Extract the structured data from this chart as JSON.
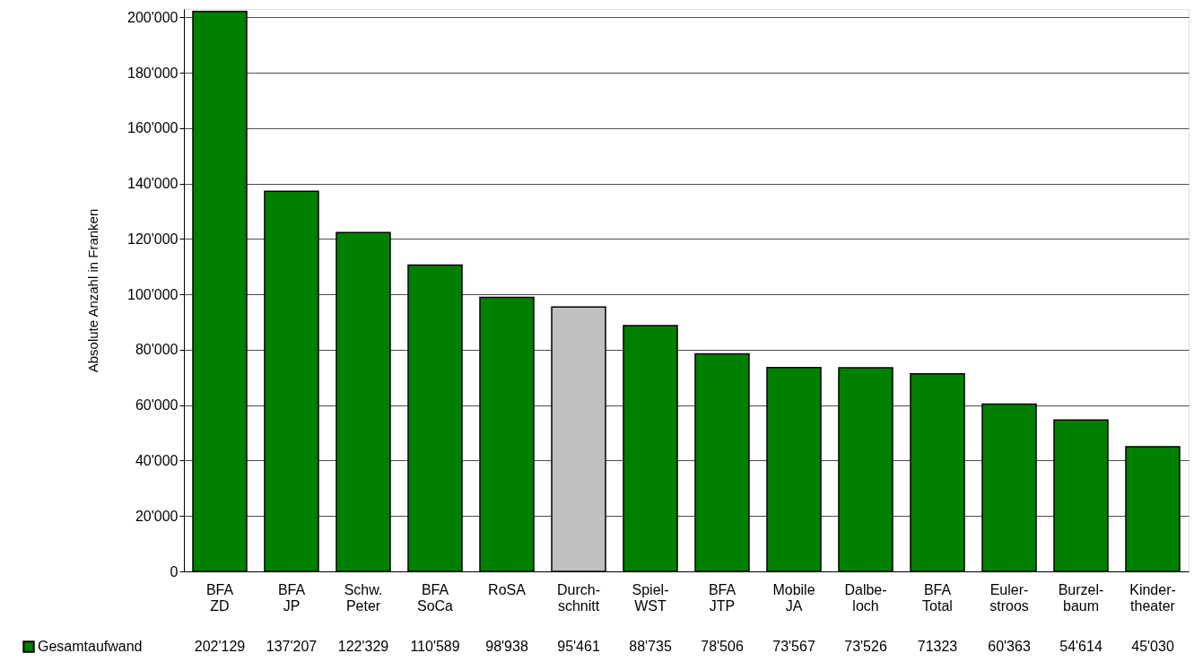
{
  "chart_data": {
    "type": "bar",
    "ylabel": "Absolute Anzahl in Franken",
    "categories": [
      "BFA\nZD",
      "BFA\nJP",
      "Schw.\nPeter",
      "BFA\nSoCa",
      "RoSA",
      "Durch-\nschnitt",
      "Spiel-\nWST",
      "BFA\nJTP",
      "Mobile\nJA",
      "Dalbe-\nloch",
      "BFA\nTotal",
      "Euler-\nstroos",
      "Burzel-\nbaum",
      "Kinder-\ntheater"
    ],
    "series": [
      {
        "name": "Gesamtaufwand",
        "color": "#008000",
        "colors": [
          "#008000",
          "#008000",
          "#008000",
          "#008000",
          "#008000",
          "#c0c0c0",
          "#008000",
          "#008000",
          "#008000",
          "#008000",
          "#008000",
          "#008000",
          "#008000",
          "#008000"
        ],
        "values": [
          202129,
          137207,
          122329,
          110589,
          98938,
          95461,
          88735,
          78506,
          73567,
          73526,
          71323,
          60363,
          54614,
          45030
        ],
        "value_labels": [
          "202'129",
          "137'207",
          "122'329",
          "110'589",
          "98'938",
          "95'461",
          "88'735",
          "78'506",
          "73'567",
          "73'526",
          "71323",
          "60'363",
          "54'614",
          "45'030"
        ]
      }
    ],
    "ylim": [
      0,
      203000
    ],
    "yticks": [
      0,
      {
        "value": 20000,
        "label": "20'000"
      },
      {
        "value": 40000,
        "label": "40'000"
      },
      {
        "value": 60000,
        "label": "60'000"
      },
      {
        "value": 80000,
        "label": "80'000"
      },
      {
        "value": 100000,
        "label": "100'000"
      },
      {
        "value": 120000,
        "label": "120'000"
      },
      {
        "value": 140000,
        "label": "140'000"
      },
      {
        "value": 160000,
        "label": "160'000"
      },
      {
        "value": 180000,
        "label": "180'000"
      },
      {
        "value": 200000,
        "label": "200'000"
      }
    ],
    "grid": "y",
    "legend": "bottom left"
  }
}
